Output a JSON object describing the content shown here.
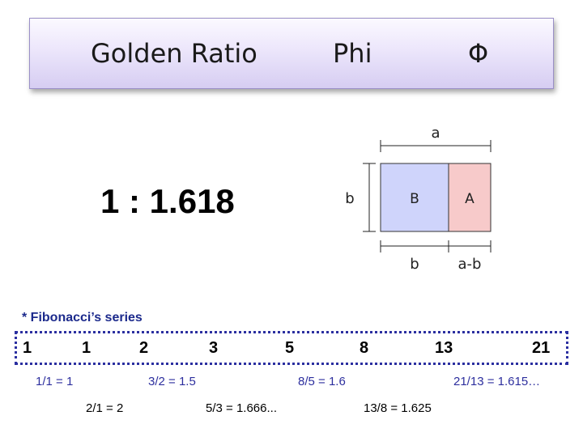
{
  "title": {
    "main": "Golden Ratio",
    "phi": "Phi",
    "symbol": "Φ"
  },
  "ratio_text": "1 : 1.618",
  "diagram": {
    "label_a_top": "a",
    "label_b_left": "b",
    "box_b": "B",
    "box_a": "A",
    "label_b_bottom": "b",
    "label_amb_bottom": "a-b",
    "colors": {
      "box_b_fill": "#cfd4fb",
      "box_a_fill": "#f7caca"
    }
  },
  "fibonacci": {
    "label": "* Fibonacci’s series",
    "numbers": [
      "1",
      "1",
      "2",
      "3",
      "5",
      "8",
      "13",
      "21"
    ],
    "quotients_top": [
      "1/1 = 1",
      "3/2 = 1.5",
      "8/5 = 1.6",
      "21/13 = 1.615…"
    ],
    "quotients_bottom": [
      "2/1 = 2",
      "5/3 = 1.666...",
      "13/8 = 1.625"
    ]
  }
}
